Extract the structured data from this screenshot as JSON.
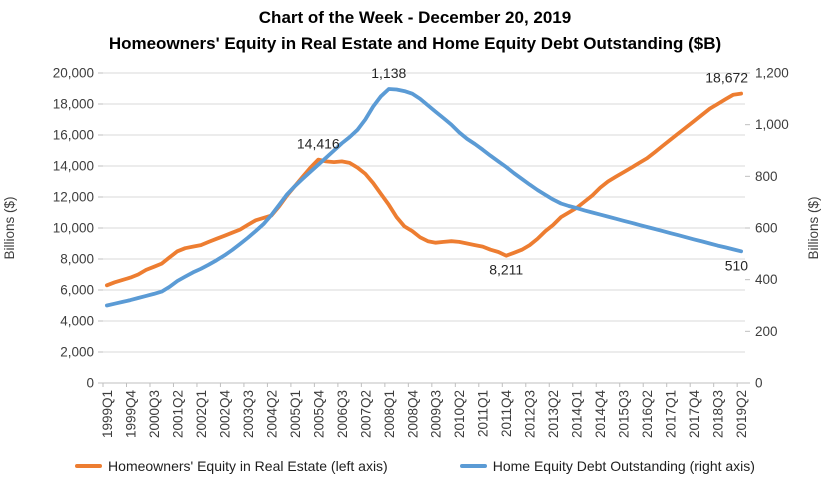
{
  "chart_data": {
    "type": "line",
    "title": "Chart of the Week - December 20, 2019",
    "subtitle": "Homeowners' Equity in Real Estate and Home Equity Debt Outstanding ($B)",
    "grid": true,
    "legend_position": "bottom",
    "x_tick_interval": 3,
    "x": [
      "1999Q1",
      "1999Q2",
      "1999Q3",
      "1999Q4",
      "2000Q1",
      "2000Q2",
      "2000Q3",
      "2000Q4",
      "2001Q1",
      "2001Q2",
      "2001Q3",
      "2001Q4",
      "2002Q1",
      "2002Q2",
      "2002Q3",
      "2002Q4",
      "2003Q1",
      "2003Q2",
      "2003Q3",
      "2003Q4",
      "2004Q1",
      "2004Q2",
      "2004Q3",
      "2004Q4",
      "2005Q1",
      "2005Q2",
      "2005Q3",
      "2005Q4",
      "2006Q1",
      "2006Q2",
      "2006Q3",
      "2006Q4",
      "2007Q1",
      "2007Q2",
      "2007Q3",
      "2007Q4",
      "2008Q1",
      "2008Q2",
      "2008Q3",
      "2008Q4",
      "2009Q1",
      "2009Q2",
      "2009Q3",
      "2009Q4",
      "2010Q1",
      "2010Q2",
      "2010Q3",
      "2010Q4",
      "2011Q1",
      "2011Q2",
      "2011Q3",
      "2011Q4",
      "2012Q1",
      "2012Q2",
      "2012Q3",
      "2012Q4",
      "2013Q1",
      "2013Q2",
      "2013Q3",
      "2013Q4",
      "2014Q1",
      "2014Q2",
      "2014Q3",
      "2014Q4",
      "2015Q1",
      "2015Q2",
      "2015Q3",
      "2015Q4",
      "2016Q1",
      "2016Q2",
      "2016Q3",
      "2016Q4",
      "2017Q1",
      "2017Q2",
      "2017Q3",
      "2017Q4",
      "2018Q1",
      "2018Q2",
      "2018Q3",
      "2018Q4",
      "2019Q1",
      "2019Q2"
    ],
    "left_axis": {
      "label": "Billions ($)",
      "min": 0,
      "max": 20000,
      "step": 2000,
      "tick_labels": [
        "0",
        "2,000",
        "4,000",
        "6,000",
        "8,000",
        "10,000",
        "12,000",
        "14,000",
        "16,000",
        "18,000",
        "20,000"
      ]
    },
    "right_axis": {
      "label": "Billions ($)",
      "min": 0,
      "max": 1200,
      "step": 200,
      "tick_labels": [
        "0",
        "200",
        "400",
        "600",
        "800",
        "1,000",
        "1,200"
      ]
    },
    "series": [
      {
        "name": "Homeowners' Equity in Real Estate (left axis)",
        "axis": "left",
        "color": "#ED7D31",
        "values": [
          6300,
          6500,
          6650,
          6800,
          7000,
          7300,
          7500,
          7700,
          8100,
          8500,
          8700,
          8800,
          8900,
          9100,
          9300,
          9500,
          9700,
          9900,
          10200,
          10500,
          10650,
          10800,
          11400,
          12100,
          12700,
          13300,
          13900,
          14416,
          14300,
          14250,
          14300,
          14200,
          13900,
          13500,
          12900,
          12200,
          11500,
          10700,
          10100,
          9800,
          9400,
          9150,
          9050,
          9100,
          9150,
          9100,
          9000,
          8900,
          8800,
          8600,
          8450,
          8211,
          8400,
          8600,
          8900,
          9300,
          9800,
          10200,
          10700,
          11000,
          11300,
          11700,
          12100,
          12600,
          13000,
          13300,
          13600,
          13900,
          14200,
          14500,
          14900,
          15300,
          15700,
          16100,
          16500,
          16900,
          17300,
          17700,
          18000,
          18300,
          18600,
          18672
        ]
      },
      {
        "name": "Home Equity Debt Outstanding (right axis)",
        "axis": "right",
        "color": "#5B9BD5",
        "values": [
          300,
          307,
          314,
          321,
          329,
          337,
          345,
          354,
          372,
          395,
          412,
          428,
          442,
          458,
          475,
          494,
          515,
          538,
          562,
          588,
          615,
          650,
          690,
          730,
          762,
          790,
          818,
          845,
          872,
          900,
          928,
          952,
          980,
          1020,
          1070,
          1110,
          1138,
          1136,
          1130,
          1120,
          1100,
          1075,
          1050,
          1025,
          1000,
          970,
          945,
          925,
          903,
          880,
          858,
          836,
          812,
          790,
          768,
          747,
          728,
          710,
          695,
          685,
          677,
          668,
          660,
          652,
          644,
          636,
          628,
          620,
          612,
          604,
          596,
          588,
          580,
          572,
          564,
          556,
          548,
          540,
          532,
          525,
          517,
          510
        ]
      }
    ],
    "annotations": [
      {
        "series_index": 0,
        "x": "2005Q4",
        "text": "14,416",
        "placement": "above"
      },
      {
        "series_index": 1,
        "x": "2008Q1",
        "text": "1,138",
        "placement": "above"
      },
      {
        "series_index": 0,
        "x": "2011Q4",
        "text": "8,211",
        "placement": "below"
      },
      {
        "series_index": 0,
        "x": "2019Q2",
        "text": "18,672",
        "placement": "above"
      },
      {
        "series_index": 1,
        "x": "2019Q2",
        "text": "510",
        "placement": "below"
      }
    ]
  }
}
